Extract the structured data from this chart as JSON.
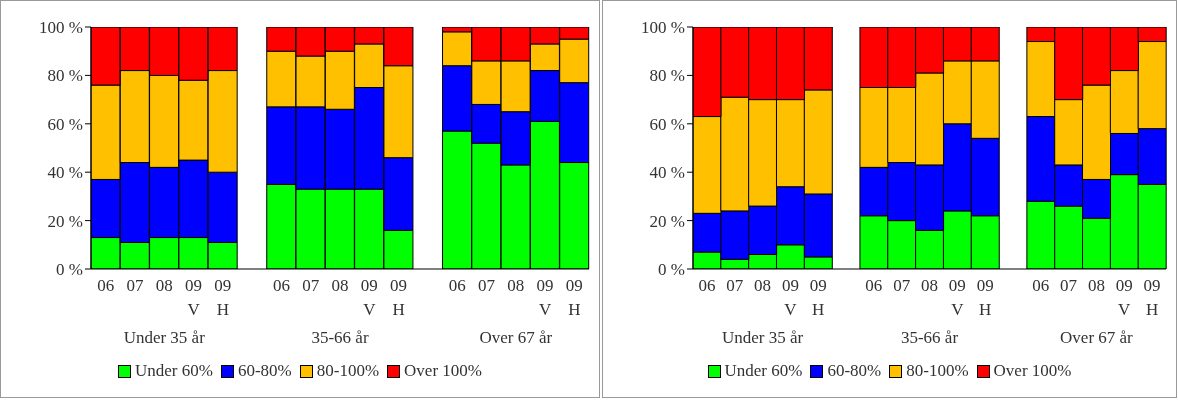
{
  "chart_data": [
    {
      "type": "bar",
      "stacked": true,
      "legend": "bottom",
      "categories": [
        "06",
        "07",
        "08",
        "09\nV",
        "09\nH",
        null,
        "06",
        "07",
        "08",
        "09\nV",
        "09\nH",
        null,
        "06",
        "07",
        "08",
        "09\nV",
        "09\nH"
      ],
      "ylim": [
        0,
        100
      ],
      "yticks": [
        {
          "value": 0,
          "label": "0 %"
        },
        {
          "value": 20,
          "label": "20 %"
        },
        {
          "value": 40,
          "label": "40 %"
        },
        {
          "value": 60,
          "label": "60 %"
        },
        {
          "value": 80,
          "label": "80 %"
        },
        {
          "value": 100,
          "label": "100 %"
        }
      ],
      "annotations": [
        "Under 35 år",
        "35-66 år",
        "Over 67 år"
      ],
      "series": [
        {
          "name": "Under 60%",
          "color": "#00ff00",
          "values": [
            13,
            11,
            13,
            13,
            11,
            null,
            35,
            33,
            33,
            33,
            16,
            null,
            57,
            52,
            43,
            61,
            44
          ]
        },
        {
          "name": "60-80%",
          "color": "#0000ff",
          "values": [
            24,
            33,
            29,
            32,
            29,
            null,
            32,
            34,
            33,
            42,
            30,
            null,
            27,
            16,
            22,
            21,
            33
          ]
        },
        {
          "name": "80-100%",
          "color": "#ffc000",
          "values": [
            39,
            38,
            38,
            33,
            42,
            null,
            23,
            21,
            24,
            18,
            38,
            null,
            14,
            18,
            21,
            11,
            18
          ]
        },
        {
          "name": "Over 100%",
          "color": "#ff0000",
          "values": [
            24,
            18,
            20,
            22,
            18,
            null,
            10,
            12,
            10,
            7,
            16,
            null,
            2,
            14,
            14,
            7,
            5
          ]
        }
      ]
    },
    {
      "type": "bar",
      "stacked": true,
      "legend": "bottom",
      "categories": [
        "06",
        "07",
        "08",
        "09\nV",
        "09\nH",
        null,
        "06",
        "07",
        "08",
        "09\nV",
        "09\nH",
        null,
        "06",
        "07",
        "08",
        "09\nV",
        "09\nH"
      ],
      "ylim": [
        0,
        100
      ],
      "yticks": [
        {
          "value": 0,
          "label": "0 %"
        },
        {
          "value": 20,
          "label": "20 %"
        },
        {
          "value": 40,
          "label": "40 %"
        },
        {
          "value": 60,
          "label": "60 %"
        },
        {
          "value": 80,
          "label": "80 %"
        },
        {
          "value": 100,
          "label": "100 %"
        }
      ],
      "annotations": [
        "Under 35 år",
        "35-66 år",
        "Over 67 år"
      ],
      "series": [
        {
          "name": "Under 60%",
          "color": "#00ff00",
          "values": [
            7,
            4,
            6,
            10,
            5,
            null,
            22,
            20,
            16,
            24,
            22,
            null,
            28,
            26,
            21,
            39,
            35
          ]
        },
        {
          "name": "60-80%",
          "color": "#0000ff",
          "values": [
            16,
            20,
            20,
            24,
            26,
            null,
            20,
            24,
            27,
            36,
            32,
            null,
            35,
            17,
            16,
            17,
            23
          ]
        },
        {
          "name": "80-100%",
          "color": "#ffc000",
          "values": [
            40,
            47,
            44,
            36,
            43,
            null,
            33,
            31,
            38,
            26,
            32,
            null,
            31,
            27,
            39,
            26,
            36
          ]
        },
        {
          "name": "Over 100%",
          "color": "#ff0000",
          "values": [
            37,
            29,
            30,
            30,
            26,
            null,
            25,
            25,
            19,
            14,
            14,
            null,
            6,
            30,
            24,
            18,
            6
          ]
        }
      ]
    }
  ]
}
